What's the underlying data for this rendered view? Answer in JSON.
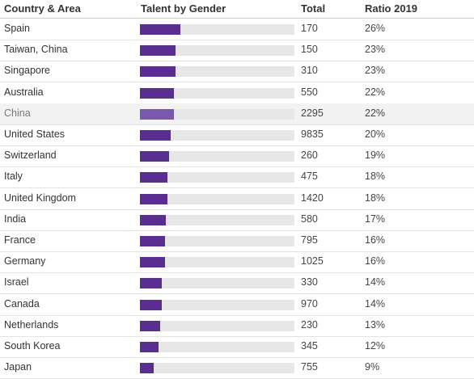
{
  "headers": {
    "country": "Country & Area",
    "talent": "Talent by Gender",
    "total": "Total",
    "ratio": "Ratio 2019"
  },
  "colors": {
    "bar": "#5a2d91",
    "bar_highlight": "#7a58b0",
    "track": "#e7e7e7",
    "highlight_row": "#f2f2f2"
  },
  "chart_data": {
    "type": "table",
    "columns": [
      "Country & Area",
      "Talent by Gender",
      "Total",
      "Ratio 2019"
    ],
    "rows": [
      {
        "country": "Spain",
        "total": "170",
        "ratio": "26%",
        "ratio_value": 26
      },
      {
        "country": "Taiwan, China",
        "total": "150",
        "ratio": "23%",
        "ratio_value": 23
      },
      {
        "country": "Singapore",
        "total": "310",
        "ratio": "23%",
        "ratio_value": 23
      },
      {
        "country": "Australia",
        "total": "550",
        "ratio": "22%",
        "ratio_value": 22
      },
      {
        "country": "China",
        "total": "2295",
        "ratio": "22%",
        "ratio_value": 22,
        "highlight": true
      },
      {
        "country": "United States",
        "total": "9835",
        "ratio": "20%",
        "ratio_value": 20
      },
      {
        "country": "Switzerland",
        "total": "260",
        "ratio": "19%",
        "ratio_value": 19
      },
      {
        "country": "Italy",
        "total": "475",
        "ratio": "18%",
        "ratio_value": 18
      },
      {
        "country": "United Kingdom",
        "total": "1420",
        "ratio": "18%",
        "ratio_value": 18
      },
      {
        "country": "India",
        "total": "580",
        "ratio": "17%",
        "ratio_value": 17
      },
      {
        "country": "France",
        "total": "795",
        "ratio": "16%",
        "ratio_value": 16
      },
      {
        "country": "Germany",
        "total": "1025",
        "ratio": "16%",
        "ratio_value": 16
      },
      {
        "country": "Israel",
        "total": "330",
        "ratio": "14%",
        "ratio_value": 14
      },
      {
        "country": "Canada",
        "total": "970",
        "ratio": "14%",
        "ratio_value": 14
      },
      {
        "country": "Netherlands",
        "total": "230",
        "ratio": "13%",
        "ratio_value": 13
      },
      {
        "country": "South Korea",
        "total": "345",
        "ratio": "12%",
        "ratio_value": 12
      },
      {
        "country": "Japan",
        "total": "755",
        "ratio": "9%",
        "ratio_value": 9
      }
    ],
    "bar_scale_max": 100
  }
}
